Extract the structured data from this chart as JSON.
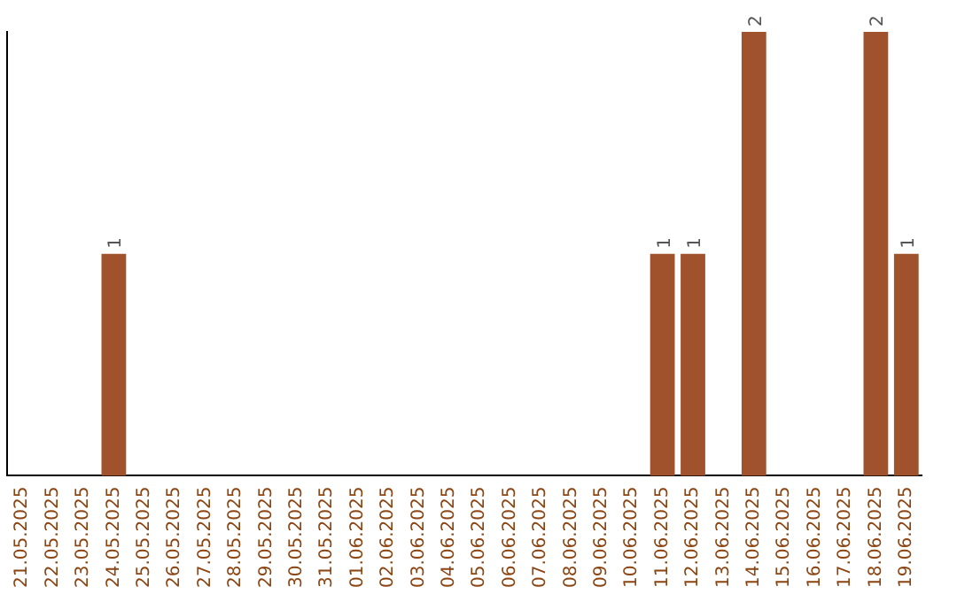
{
  "chart_data": {
    "type": "bar",
    "categories": [
      "21.05.2025",
      "22.05.2025",
      "23.05.2025",
      "24.05.2025",
      "25.05.2025",
      "26.05.2025",
      "27.05.2025",
      "28.05.2025",
      "29.05.2025",
      "30.05.2025",
      "31.05.2025",
      "01.06.2025",
      "02.06.2025",
      "03.06.2025",
      "04.06.2025",
      "05.06.2025",
      "06.06.2025",
      "07.06.2025",
      "08.06.2025",
      "09.06.2025",
      "10.06.2025",
      "11.06.2025",
      "12.06.2025",
      "13.06.2025",
      "14.06.2025",
      "15.06.2025",
      "16.06.2025",
      "17.06.2025",
      "18.06.2025",
      "19.06.2025"
    ],
    "values": [
      0,
      0,
      0,
      1,
      0,
      0,
      0,
      0,
      0,
      0,
      0,
      0,
      0,
      0,
      0,
      0,
      0,
      0,
      0,
      0,
      0,
      1,
      1,
      0,
      2,
      0,
      0,
      0,
      2,
      1
    ],
    "value_labels": [
      null,
      null,
      null,
      "1",
      null,
      null,
      null,
      null,
      null,
      null,
      null,
      null,
      null,
      null,
      null,
      null,
      null,
      null,
      null,
      null,
      null,
      "1",
      "1",
      null,
      "2",
      null,
      null,
      null,
      "2",
      "1"
    ],
    "color": "#a0522d",
    "grid": false,
    "legend": false
  }
}
